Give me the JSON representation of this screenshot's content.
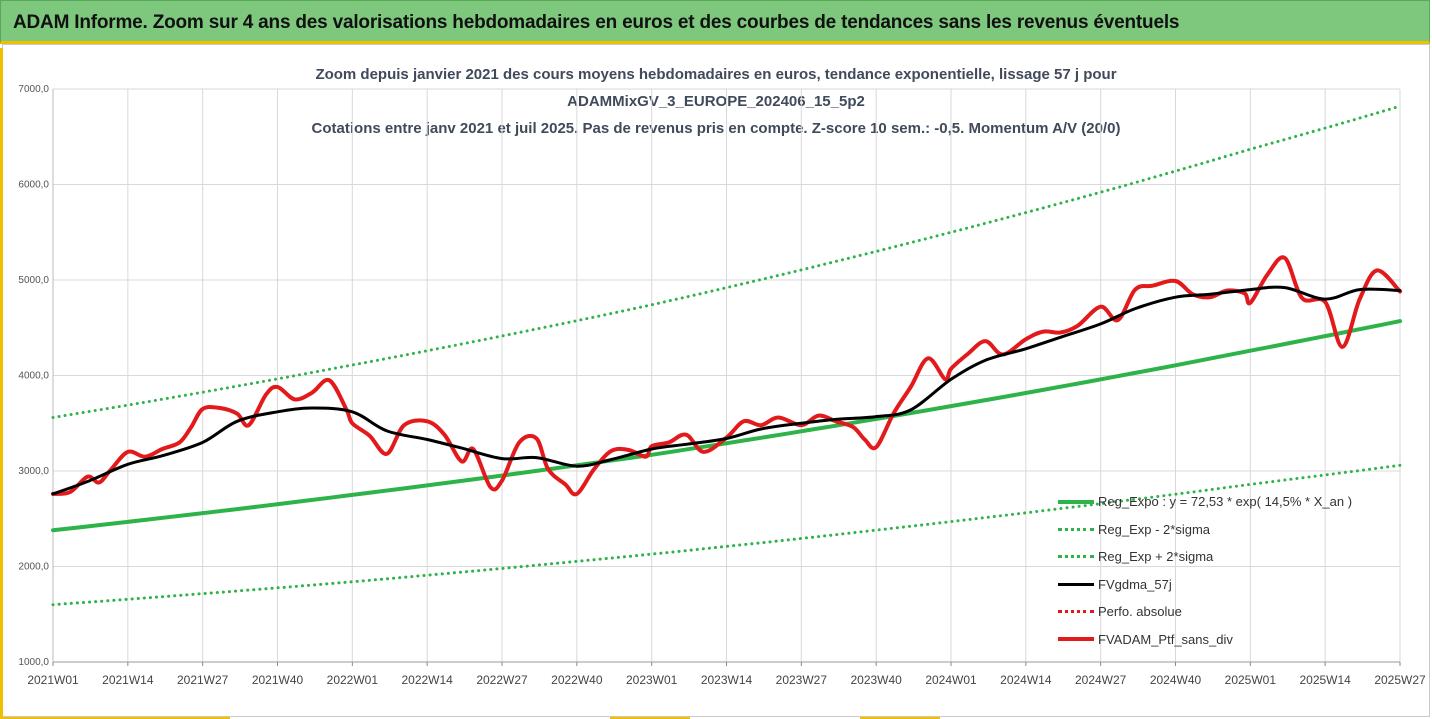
{
  "banner": {
    "title": "ADAM Informe. Zoom sur 4 ans des valorisations hebdomadaires en euros et des courbes de tendances sans les revenus éventuels"
  },
  "chart_title": {
    "line1": "Zoom depuis janvier 2021 des cours moyens hebdomadaires  en euros, tendance exponentielle, lissage 57 j pour",
    "line2": "ADAMMixGV_3_EUROPE_202406_15_5p2",
    "line3": "Cotations entre janv 2021 et juil 2025. Pas de revenus pris en compte. Z-score 10 sem.: -0,5. Momentum A/V (20/0)"
  },
  "colors": {
    "banner_bg": "#7dc87d",
    "accent": "#f0c000",
    "trend": "#2db34a",
    "sigma": "#2db34a",
    "smooth": "#000000",
    "perf_abs": "#e31a1c",
    "portfolio": "#e31a1c",
    "grid": "#d9d9d9"
  },
  "chart_data": {
    "type": "line",
    "xlabel": "",
    "ylabel": "",
    "ylim": [
      1000,
      7000
    ],
    "yticks": [
      "1000,0",
      "2000,0",
      "3000,0",
      "4000,0",
      "5000,0",
      "6000,0",
      "7000,0"
    ],
    "x_labels": [
      "2021W01",
      "2021W14",
      "2021W27",
      "2021W40",
      "2022W01",
      "2022W14",
      "2022W27",
      "2022W40",
      "2023W01",
      "2023W14",
      "2023W27",
      "2023W40",
      "2024W01",
      "2024W14",
      "2024W27",
      "2024W40",
      "2025W01",
      "2025W14",
      "2025W27"
    ],
    "x_range": [
      "2021W01",
      "2025W27"
    ],
    "grid": true,
    "legend_position": "bottom-right",
    "series": [
      {
        "name": "Reg_Expo : y = 72,53 * exp( 14,5% *  X_an )",
        "style": "solid-thick",
        "color": "#2db34a",
        "x": [
          "2021W01",
          "2022W01",
          "2023W01",
          "2024W01",
          "2025W01",
          "2025W27"
        ],
        "values": [
          2380,
          2750,
          3170,
          3680,
          4260,
          4570
        ]
      },
      {
        "name": "Reg_Exp - 2*sigma",
        "style": "dotted",
        "color": "#2db34a",
        "x": [
          "2021W01",
          "2022W01",
          "2023W01",
          "2024W01",
          "2025W01",
          "2025W27"
        ],
        "values": [
          1600,
          1840,
          2130,
          2470,
          2860,
          3060
        ]
      },
      {
        "name": "Reg_Exp + 2*sigma",
        "style": "dotted",
        "color": "#2db34a",
        "x": [
          "2021W01",
          "2022W01",
          "2023W01",
          "2024W01",
          "2025W01",
          "2025W27"
        ],
        "values": [
          3560,
          4110,
          4740,
          5500,
          6370,
          6820
        ]
      },
      {
        "name": "FVgdma_57j",
        "style": "solid",
        "color": "#000000",
        "x": [
          "2021W01",
          "2021W07",
          "2021W14",
          "2021W20",
          "2021W27",
          "2021W33",
          "2021W40",
          "2021W46",
          "2022W01",
          "2022W07",
          "2022W14",
          "2022W20",
          "2022W27",
          "2022W33",
          "2022W40",
          "2022W46",
          "2023W01",
          "2023W07",
          "2023W14",
          "2023W20",
          "2023W27",
          "2023W33",
          "2023W40",
          "2023W46",
          "2024W01",
          "2024W07",
          "2024W14",
          "2024W20",
          "2024W27",
          "2024W33",
          "2024W40",
          "2024W46",
          "2025W01",
          "2025W07",
          "2025W14",
          "2025W20",
          "2025W27"
        ],
        "values": [
          2760,
          2890,
          3070,
          3160,
          3300,
          3520,
          3620,
          3660,
          3620,
          3420,
          3330,
          3240,
          3130,
          3140,
          3050,
          3120,
          3230,
          3280,
          3340,
          3440,
          3500,
          3540,
          3570,
          3640,
          3960,
          4160,
          4280,
          4400,
          4540,
          4700,
          4820,
          4850,
          4900,
          4920,
          4800,
          4900,
          4890
        ]
      },
      {
        "name": "Perfo. absolue",
        "style": "dotted",
        "color": "#e31a1c",
        "x": [],
        "values": []
      },
      {
        "name": "FVADAM_Ptf_sans_div",
        "style": "solid-thick",
        "color": "#e31a1c",
        "x": [
          "2021W01",
          "2021W04",
          "2021W07",
          "2021W09",
          "2021W11",
          "2021W14",
          "2021W17",
          "2021W20",
          "2021W23",
          "2021W25",
          "2021W27",
          "2021W30",
          "2021W33",
          "2021W35",
          "2021W38",
          "2021W40",
          "2021W43",
          "2021W46",
          "2021W49",
          "2021W52",
          "2022W01",
          "2022W04",
          "2022W07",
          "2022W10",
          "2022W14",
          "2022W17",
          "2022W20",
          "2022W22",
          "2022W25",
          "2022W27",
          "2022W30",
          "2022W33",
          "2022W35",
          "2022W38",
          "2022W40",
          "2022W43",
          "2022W46",
          "2022W49",
          "2022W52",
          "2023W01",
          "2023W04",
          "2023W07",
          "2023W10",
          "2023W14",
          "2023W17",
          "2023W20",
          "2023W23",
          "2023W27",
          "2023W30",
          "2023W33",
          "2023W36",
          "2023W38",
          "2023W40",
          "2023W43",
          "2023W46",
          "2023W49",
          "2023W52",
          "2024W01",
          "2024W04",
          "2024W07",
          "2024W10",
          "2024W14",
          "2024W17",
          "2024W20",
          "2024W23",
          "2024W27",
          "2024W30",
          "2024W33",
          "2024W36",
          "2024W40",
          "2024W43",
          "2024W46",
          "2024W49",
          "2024W52",
          "2025W01",
          "2025W04",
          "2025W07",
          "2025W10",
          "2025W14",
          "2025W17",
          "2025W20",
          "2025W23",
          "2025W27"
        ],
        "values": [
          2760,
          2780,
          2940,
          2880,
          3010,
          3200,
          3150,
          3230,
          3300,
          3460,
          3650,
          3660,
          3600,
          3480,
          3800,
          3880,
          3750,
          3820,
          3950,
          3640,
          3500,
          3370,
          3180,
          3480,
          3520,
          3380,
          3100,
          3230,
          2830,
          2900,
          3300,
          3340,
          3020,
          2860,
          2760,
          3020,
          3210,
          3220,
          3150,
          3260,
          3300,
          3380,
          3200,
          3350,
          3520,
          3480,
          3560,
          3480,
          3580,
          3520,
          3460,
          3330,
          3250,
          3600,
          3880,
          4180,
          3960,
          4070,
          4230,
          4360,
          4220,
          4380,
          4460,
          4450,
          4520,
          4720,
          4580,
          4900,
          4940,
          4990,
          4850,
          4820,
          4890,
          4860,
          4760,
          5060,
          5230,
          4810,
          4770,
          4300,
          4800,
          5100,
          4880
        ]
      }
    ]
  },
  "legend": {
    "items": [
      {
        "label": "Reg_Expo : y = 72,53 * exp( 14,5% *  X_an )",
        "color": "#2db34a",
        "style": "solid-thick"
      },
      {
        "label": "Reg_Exp - 2*sigma",
        "color": "#2db34a",
        "style": "dotted"
      },
      {
        "label": "Reg_Exp + 2*sigma",
        "color": "#2db34a",
        "style": "dotted"
      },
      {
        "label": "FVgdma_57j",
        "color": "#000000",
        "style": "solid"
      },
      {
        "label": "Perfo. absolue",
        "color": "#e31a1c",
        "style": "dotted"
      },
      {
        "label": "FVADAM_Ptf_sans_div",
        "color": "#e31a1c",
        "style": "solid-thick"
      }
    ]
  }
}
